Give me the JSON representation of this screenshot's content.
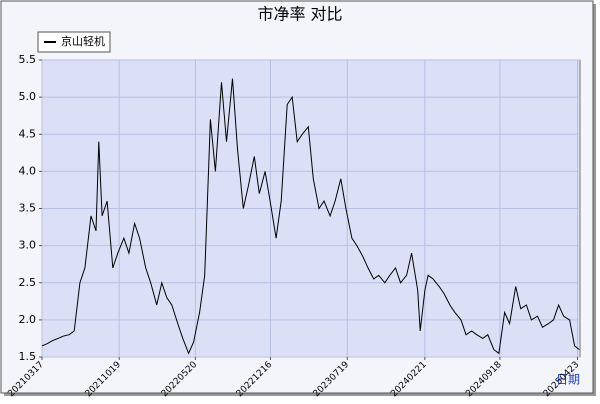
{
  "chart_data": {
    "type": "line",
    "title": "市净率  对比",
    "x_label": "日期",
    "x": [
      "20210317",
      "20210401",
      "20210415",
      "20210501",
      "20210515",
      "20210601",
      "20210615",
      "20210701",
      "20210715",
      "20210801",
      "20210815",
      "20210823",
      "20210901",
      "20210915",
      "20211001",
      "20211015",
      "20211101",
      "20211115",
      "20211201",
      "20211215",
      "20220101",
      "20220115",
      "20220201",
      "20220215",
      "20220301",
      "20220315",
      "20220401",
      "20220415",
      "20220501",
      "20220515",
      "20220601",
      "20220615",
      "20220701",
      "20220715",
      "20220801",
      "20220815",
      "20220901",
      "20220915",
      "20221001",
      "20221015",
      "20221101",
      "20221115",
      "20221201",
      "20221215",
      "20230101",
      "20230115",
      "20230201",
      "20230215",
      "20230301",
      "20230315",
      "20230401",
      "20230415",
      "20230501",
      "20230515",
      "20230601",
      "20230615",
      "20230701",
      "20230715",
      "20230801",
      "20230815",
      "20230901",
      "20230915",
      "20231001",
      "20231015",
      "20231101",
      "20231115",
      "20231201",
      "20231215",
      "20240101",
      "20240115",
      "20240201",
      "20240208",
      "20240221",
      "20240301",
      "20240315",
      "20240401",
      "20240415",
      "20240501",
      "20240515",
      "20240601",
      "20240615",
      "20240701",
      "20240715",
      "20240801",
      "20240815",
      "20240901",
      "20240915",
      "20241001",
      "20241015",
      "20241101",
      "20241115",
      "20241201",
      "20241215",
      "20250101",
      "20250115",
      "20250201",
      "20250215",
      "20250301",
      "20250315",
      "20250401",
      "20250415",
      "20250428"
    ],
    "series": [
      {
        "name": "京山轻机",
        "color": "#000000",
        "values": [
          1.65,
          1.68,
          1.72,
          1.75,
          1.78,
          1.8,
          1.85,
          2.5,
          2.7,
          3.4,
          3.2,
          4.4,
          3.4,
          3.6,
          2.7,
          2.9,
          3.1,
          2.9,
          3.3,
          3.1,
          2.7,
          2.5,
          2.2,
          2.5,
          2.3,
          2.2,
          1.95,
          1.75,
          1.55,
          1.7,
          2.1,
          2.6,
          4.7,
          4.0,
          5.2,
          4.4,
          5.25,
          4.3,
          3.5,
          3.8,
          4.2,
          3.7,
          4.0,
          3.6,
          3.1,
          3.6,
          4.9,
          5.0,
          4.4,
          4.5,
          4.6,
          3.9,
          3.5,
          3.6,
          3.4,
          3.6,
          3.9,
          3.5,
          3.1,
          3.0,
          2.85,
          2.7,
          2.55,
          2.6,
          2.5,
          2.6,
          2.7,
          2.5,
          2.6,
          2.9,
          2.4,
          1.85,
          2.4,
          2.6,
          2.55,
          2.45,
          2.35,
          2.2,
          2.1,
          2.0,
          1.8,
          1.85,
          1.8,
          1.75,
          1.8,
          1.6,
          1.55,
          2.1,
          1.95,
          2.45,
          2.15,
          2.2,
          2.0,
          2.05,
          1.9,
          1.95,
          2.0,
          2.2,
          2.05,
          2.0,
          1.65,
          1.6
        ]
      }
    ],
    "xlim": [
      "20210317",
      "20250430"
    ],
    "xticks": [
      "20210317",
      "20211019",
      "20220520",
      "20221216",
      "20230719",
      "20240221",
      "20240918",
      "20250423"
    ],
    "ylim": [
      1.5,
      5.5
    ],
    "yticks": [
      1.5,
      {
        "value": 2,
        "label": "2.0"
      },
      2.5,
      {
        "value": 3,
        "label": "3.0"
      },
      3.5,
      {
        "value": 4,
        "label": "4.0"
      },
      4.5,
      {
        "value": 5,
        "label": "5.0"
      },
      5.5
    ],
    "grid": true,
    "legend": "top-left"
  }
}
